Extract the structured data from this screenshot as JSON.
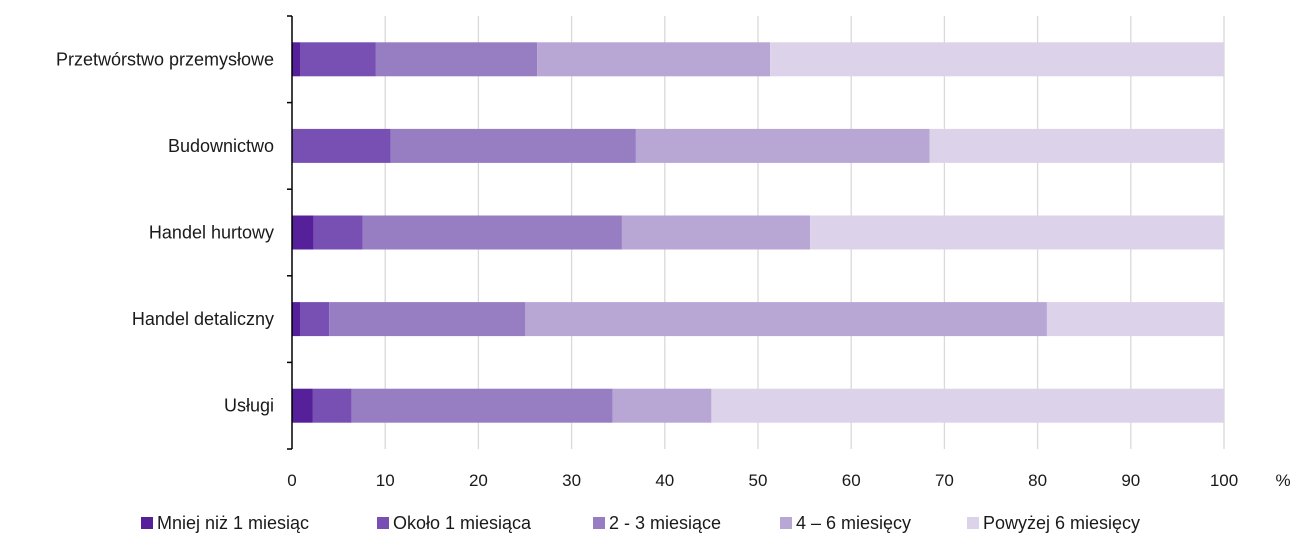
{
  "chart_data": {
    "type": "bar",
    "orientation": "horizontal",
    "stacked": true,
    "categories": [
      "Przetwórstwo przemysłowe",
      "Budownictwo",
      "Handel hurtowy",
      "Handel detaliczny",
      "Usługi"
    ],
    "series": [
      {
        "name": "Mniej niż 1 miesiąc",
        "color": "#55209a",
        "values": [
          0.9,
          0.0,
          2.3,
          0.9,
          2.2
        ]
      },
      {
        "name": "Około 1 miesiąca",
        "color": "#7850b3",
        "values": [
          8.1,
          10.6,
          5.3,
          3.1,
          4.2
        ]
      },
      {
        "name": "2 - 3 miesiące",
        "color": "#977ec3",
        "values": [
          17.3,
          26.3,
          27.8,
          21.0,
          28.0
        ]
      },
      {
        "name": "4 – 6 miesięcy",
        "color": "#b8a6d5",
        "values": [
          25.0,
          31.5,
          20.2,
          56.0,
          10.6
        ]
      },
      {
        "name": "Powyżej 6 miesięcy",
        "color": "#dcd3ea",
        "values": [
          48.7,
          31.6,
          44.4,
          19.0,
          55.0
        ]
      }
    ],
    "x_ticks": [
      "0",
      "10",
      "20",
      "30",
      "40",
      "50",
      "60",
      "70",
      "80",
      "90",
      "100"
    ],
    "xlim": [
      0,
      100
    ],
    "x_unit": "%",
    "grid": true,
    "legend_position": "bottom"
  }
}
